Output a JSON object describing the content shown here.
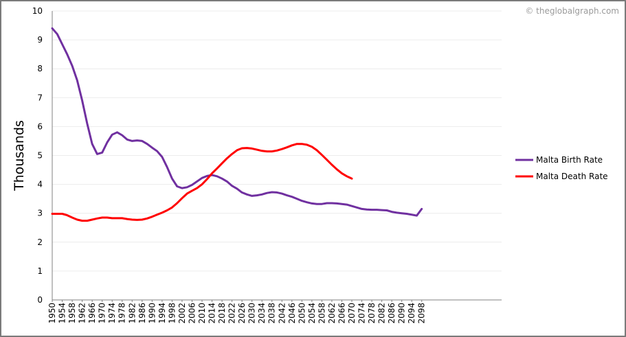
{
  "watermark": "© theglobalgraph.com",
  "chart_data": {
    "type": "line",
    "title": "",
    "xlabel": "",
    "ylabel": "Thousands",
    "ylim": [
      0,
      10
    ],
    "yticks": [
      "0",
      "1",
      "2",
      "3",
      "4",
      "5",
      "6",
      "7",
      "8",
      "9",
      "10"
    ],
    "xticks": [
      "1950",
      "1954",
      "1958",
      "1962",
      "1966",
      "1970",
      "1974",
      "1978",
      "1982",
      "1986",
      "1990",
      "1994",
      "1998",
      "2002",
      "2006",
      "2010",
      "2014",
      "2018",
      "2022",
      "2026",
      "2030",
      "2034",
      "2038",
      "2042",
      "2046",
      "2050",
      "2054",
      "2058",
      "2062",
      "2066",
      "2070",
      "2074",
      "2078",
      "2082",
      "2086",
      "2090",
      "2094",
      "2098"
    ],
    "xlim": [
      1950,
      2130
    ],
    "grid": true,
    "legend_position": "right",
    "series": [
      {
        "name": "Malta Birth Rate",
        "color": "#7030a0",
        "points": [
          [
            1950,
            9.4
          ],
          [
            1952,
            9.2
          ],
          [
            1954,
            8.85
          ],
          [
            1956,
            8.5
          ],
          [
            1958,
            8.1
          ],
          [
            1960,
            7.6
          ],
          [
            1962,
            6.9
          ],
          [
            1964,
            6.1
          ],
          [
            1966,
            5.4
          ],
          [
            1968,
            5.05
          ],
          [
            1970,
            5.1
          ],
          [
            1972,
            5.45
          ],
          [
            1974,
            5.72
          ],
          [
            1976,
            5.8
          ],
          [
            1978,
            5.7
          ],
          [
            1980,
            5.55
          ],
          [
            1982,
            5.5
          ],
          [
            1984,
            5.52
          ],
          [
            1986,
            5.5
          ],
          [
            1988,
            5.4
          ],
          [
            1990,
            5.27
          ],
          [
            1992,
            5.15
          ],
          [
            1994,
            4.95
          ],
          [
            1996,
            4.6
          ],
          [
            1998,
            4.2
          ],
          [
            2000,
            3.93
          ],
          [
            2002,
            3.87
          ],
          [
            2004,
            3.9
          ],
          [
            2006,
            3.98
          ],
          [
            2008,
            4.1
          ],
          [
            2010,
            4.22
          ],
          [
            2012,
            4.29
          ],
          [
            2014,
            4.32
          ],
          [
            2016,
            4.28
          ],
          [
            2018,
            4.2
          ],
          [
            2020,
            4.1
          ],
          [
            2022,
            3.95
          ],
          [
            2024,
            3.85
          ],
          [
            2026,
            3.72
          ],
          [
            2028,
            3.65
          ],
          [
            2030,
            3.6
          ],
          [
            2032,
            3.62
          ],
          [
            2034,
            3.65
          ],
          [
            2036,
            3.7
          ],
          [
            2038,
            3.73
          ],
          [
            2040,
            3.72
          ],
          [
            2042,
            3.68
          ],
          [
            2044,
            3.62
          ],
          [
            2046,
            3.57
          ],
          [
            2048,
            3.5
          ],
          [
            2050,
            3.43
          ],
          [
            2052,
            3.38
          ],
          [
            2054,
            3.34
          ],
          [
            2056,
            3.32
          ],
          [
            2058,
            3.32
          ],
          [
            2060,
            3.35
          ],
          [
            2062,
            3.35
          ],
          [
            2064,
            3.34
          ],
          [
            2066,
            3.32
          ],
          [
            2068,
            3.3
          ],
          [
            2070,
            3.25
          ],
          [
            2072,
            3.2
          ],
          [
            2074,
            3.15
          ],
          [
            2076,
            3.13
          ],
          [
            2078,
            3.12
          ],
          [
            2080,
            3.12
          ],
          [
            2082,
            3.11
          ],
          [
            2084,
            3.1
          ],
          [
            2086,
            3.05
          ],
          [
            2088,
            3.02
          ],
          [
            2090,
            3.0
          ],
          [
            2092,
            2.98
          ],
          [
            2094,
            2.95
          ],
          [
            2096,
            2.92
          ],
          [
            2098,
            3.15
          ]
        ]
      },
      {
        "name": "Malta Death Rate",
        "color": "#ff0000",
        "points": [
          [
            1950,
            2.98
          ],
          [
            1952,
            2.98
          ],
          [
            1954,
            2.98
          ],
          [
            1956,
            2.93
          ],
          [
            1958,
            2.85
          ],
          [
            1960,
            2.78
          ],
          [
            1962,
            2.74
          ],
          [
            1964,
            2.74
          ],
          [
            1966,
            2.78
          ],
          [
            1968,
            2.82
          ],
          [
            1970,
            2.85
          ],
          [
            1972,
            2.85
          ],
          [
            1974,
            2.83
          ],
          [
            1976,
            2.83
          ],
          [
            1978,
            2.83
          ],
          [
            1980,
            2.8
          ],
          [
            1982,
            2.78
          ],
          [
            1984,
            2.77
          ],
          [
            1986,
            2.78
          ],
          [
            1988,
            2.82
          ],
          [
            1990,
            2.88
          ],
          [
            1992,
            2.95
          ],
          [
            1994,
            3.02
          ],
          [
            1996,
            3.1
          ],
          [
            1998,
            3.2
          ],
          [
            2000,
            3.35
          ],
          [
            2002,
            3.52
          ],
          [
            2004,
            3.68
          ],
          [
            2006,
            3.78
          ],
          [
            2008,
            3.87
          ],
          [
            2010,
            4.0
          ],
          [
            2012,
            4.18
          ],
          [
            2014,
            4.38
          ],
          [
            2016,
            4.55
          ],
          [
            2018,
            4.73
          ],
          [
            2020,
            4.9
          ],
          [
            2022,
            5.05
          ],
          [
            2024,
            5.18
          ],
          [
            2026,
            5.25
          ],
          [
            2028,
            5.26
          ],
          [
            2030,
            5.24
          ],
          [
            2032,
            5.2
          ],
          [
            2034,
            5.16
          ],
          [
            2036,
            5.14
          ],
          [
            2038,
            5.14
          ],
          [
            2040,
            5.17
          ],
          [
            2042,
            5.22
          ],
          [
            2044,
            5.28
          ],
          [
            2046,
            5.35
          ],
          [
            2048,
            5.4
          ],
          [
            2050,
            5.4
          ],
          [
            2052,
            5.37
          ],
          [
            2054,
            5.3
          ],
          [
            2056,
            5.18
          ],
          [
            2058,
            5.02
          ],
          [
            2060,
            4.85
          ],
          [
            2062,
            4.68
          ],
          [
            2064,
            4.52
          ],
          [
            2066,
            4.38
          ],
          [
            2068,
            4.28
          ],
          [
            2070,
            4.2
          ]
        ]
      }
    ]
  }
}
